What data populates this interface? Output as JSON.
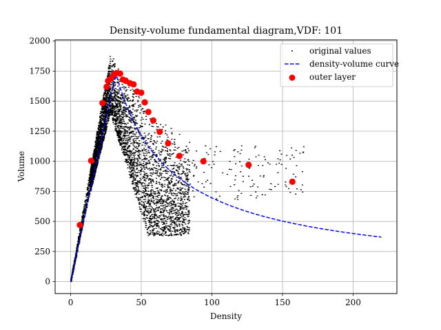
{
  "chart_data": {
    "type": "scatter",
    "title": "Density-volume fundamental diagram,VDF: 101",
    "xlabel": "Density",
    "ylabel": "Volume",
    "xlim": [
      -11,
      231
    ],
    "ylim": [
      -100,
      2010
    ],
    "xticks": [
      0,
      50,
      100,
      150,
      200
    ],
    "yticks": [
      0,
      250,
      500,
      750,
      1000,
      1250,
      1500,
      1750,
      2000
    ],
    "grid": true,
    "legend_position": "top-right",
    "legend": {
      "original_label": "original values",
      "curve_label": "density-volume curve",
      "outer_label": "outer layer"
    },
    "colors": {
      "original": "#000000",
      "curve": "#0000ff",
      "outer": "#ff0000"
    },
    "series": [
      {
        "name": "outer layer",
        "x": [
          6.5,
          14.5,
          22.5,
          25.5,
          26.5,
          28.5,
          31,
          33,
          35,
          37,
          39,
          42,
          44.5,
          47,
          50,
          52.5,
          55,
          58.5,
          63,
          69,
          77,
          94,
          126,
          157
        ],
        "y": [
          470,
          1005,
          1485,
          1620,
          1670,
          1690,
          1725,
          1735,
          1730,
          1680,
          1670,
          1650,
          1640,
          1580,
          1570,
          1490,
          1410,
          1340,
          1245,
          1150,
          1045,
          1000,
          970,
          830
        ]
      }
    ],
    "curve": {
      "name": "density-volume curve",
      "peak_density": 32,
      "peak_volume": 1735,
      "x_end": 220,
      "y_end": 370,
      "shape_exponent": 0.78
    },
    "cloud": {
      "name": "original values",
      "point_count": 5200,
      "x_max": 165,
      "y_min_top_region": 380
    }
  }
}
